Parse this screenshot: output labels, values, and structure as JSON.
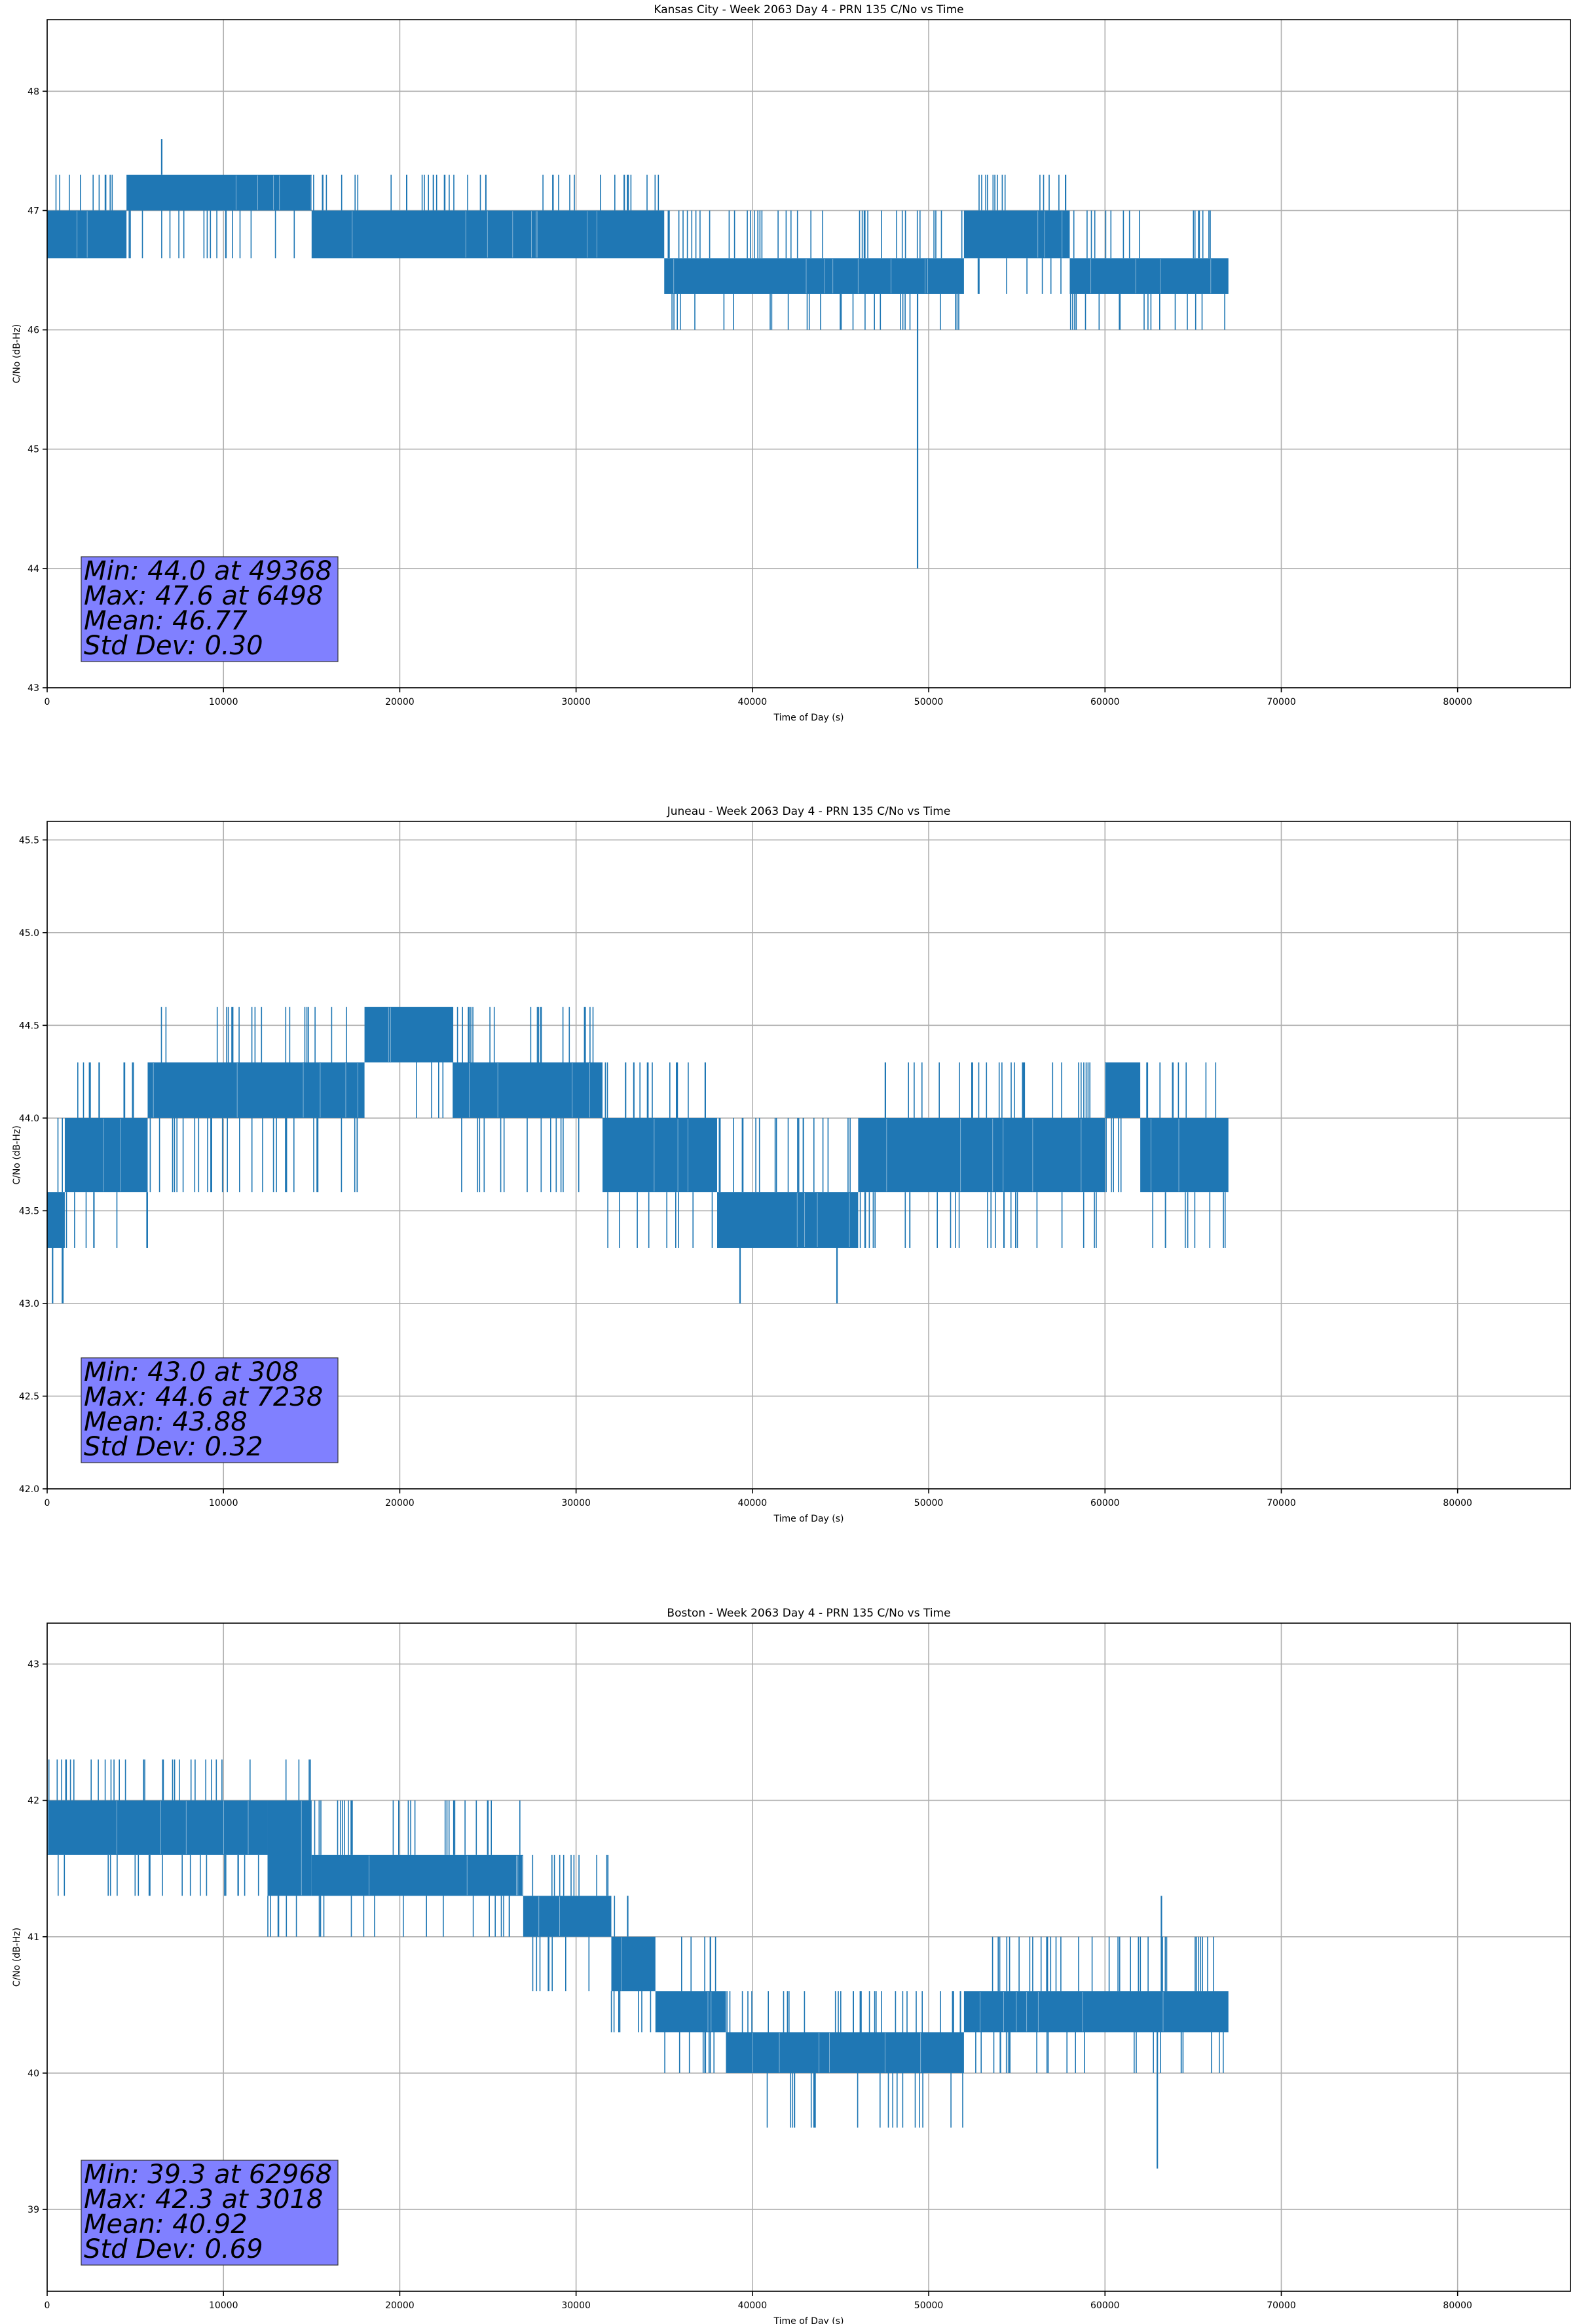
{
  "colors": {
    "line": "#1f77b4",
    "stats_box": "#8080ff",
    "grid": "#b0b0b0",
    "axes": "#000000"
  },
  "chart_data": [
    {
      "type": "line",
      "title": "Kansas City - Week 2063 Day 4 - PRN 135 C/No vs Time",
      "xlabel": "Time of Day (s)",
      "ylabel": "C/No (dB-Hz)",
      "xlim": [
        0,
        86400
      ],
      "ylim": [
        43,
        48.6
      ],
      "xticks": [
        0,
        10000,
        20000,
        30000,
        40000,
        50000,
        60000,
        70000,
        80000
      ],
      "xtick_labels": [
        "0",
        "10000",
        "20000",
        "30000",
        "40000",
        "50000",
        "60000",
        "70000",
        "80000"
      ],
      "yticks": [
        43,
        44,
        45,
        46,
        47,
        48
      ],
      "ytick_labels": [
        "43",
        "44",
        "45",
        "46",
        "47",
        "48"
      ],
      "grid": true,
      "stats": [
        "Min: 44.0 at 49368",
        "Max: 47.6 at 6498",
        "Mean: 46.77",
        "Std Dev: 0.30"
      ],
      "spikes": [
        [
          6498,
          47.6
        ],
        [
          49368,
          44.0
        ]
      ],
      "series": [
        {
          "name": "C/No",
          "bands": [
            {
              "x0": 0,
              "x1": 4500,
              "lo": 46.6,
              "hi": 47.0,
              "up": 47.3,
              "down": 46.6
            },
            {
              "x0": 4500,
              "x1": 15000,
              "lo": 47.0,
              "hi": 47.3,
              "up": 47.3,
              "down": 46.6
            },
            {
              "x0": 15000,
              "x1": 35000,
              "lo": 46.6,
              "hi": 47.0,
              "up": 47.3,
              "down": 46.6
            },
            {
              "x0": 35000,
              "x1": 52000,
              "lo": 46.3,
              "hi": 46.6,
              "up": 47.0,
              "down": 46.0
            },
            {
              "x0": 52000,
              "x1": 58000,
              "lo": 46.6,
              "hi": 47.0,
              "up": 47.3,
              "down": 46.3
            },
            {
              "x0": 58000,
              "x1": 67000,
              "lo": 46.3,
              "hi": 46.6,
              "up": 47.0,
              "down": 46.0
            }
          ]
        }
      ]
    },
    {
      "type": "line",
      "title": "Juneau - Week 2063 Day 4 - PRN 135 C/No vs Time",
      "xlabel": "Time of Day (s)",
      "ylabel": "C/No (dB-Hz)",
      "xlim": [
        0,
        86400
      ],
      "ylim": [
        42.0,
        45.6
      ],
      "xticks": [
        0,
        10000,
        20000,
        30000,
        40000,
        50000,
        60000,
        70000,
        80000
      ],
      "xtick_labels": [
        "0",
        "10000",
        "20000",
        "30000",
        "40000",
        "50000",
        "60000",
        "70000",
        "80000"
      ],
      "yticks": [
        42.0,
        42.5,
        43.0,
        43.5,
        44.0,
        44.5,
        45.0,
        45.5
      ],
      "ytick_labels": [
        "42.0",
        "42.5",
        "43.0",
        "43.5",
        "44.0",
        "44.5",
        "45.0",
        "45.5"
      ],
      "grid": true,
      "stats": [
        "Min: 43.0 at 308",
        "Max: 44.6 at 7238",
        "Mean: 43.88",
        "Std Dev: 0.32"
      ],
      "spikes": [
        [
          308,
          43.0
        ],
        [
          39300,
          43.0
        ],
        [
          44800,
          43.0
        ]
      ],
      "series": [
        {
          "name": "C/No",
          "bands": [
            {
              "x0": 0,
              "x1": 1000,
              "lo": 43.3,
              "hi": 43.6,
              "up": 44.0,
              "down": 43.0
            },
            {
              "x0": 1000,
              "x1": 5700,
              "lo": 43.6,
              "hi": 44.0,
              "up": 44.3,
              "down": 43.3
            },
            {
              "x0": 5700,
              "x1": 18000,
              "lo": 44.0,
              "hi": 44.3,
              "up": 44.6,
              "down": 43.6
            },
            {
              "x0": 18000,
              "x1": 23000,
              "lo": 44.3,
              "hi": 44.6,
              "up": 44.6,
              "down": 44.0
            },
            {
              "x0": 23000,
              "x1": 31500,
              "lo": 44.0,
              "hi": 44.3,
              "up": 44.6,
              "down": 43.6
            },
            {
              "x0": 31500,
              "x1": 38000,
              "lo": 43.6,
              "hi": 44.0,
              "up": 44.3,
              "down": 43.3
            },
            {
              "x0": 38000,
              "x1": 46000,
              "lo": 43.3,
              "hi": 43.6,
              "up": 44.0,
              "down": 43.3
            },
            {
              "x0": 46000,
              "x1": 60000,
              "lo": 43.6,
              "hi": 44.0,
              "up": 44.3,
              "down": 43.3
            },
            {
              "x0": 60000,
              "x1": 62000,
              "lo": 44.0,
              "hi": 44.3,
              "up": 44.3,
              "down": 43.6
            },
            {
              "x0": 62000,
              "x1": 67000,
              "lo": 43.6,
              "hi": 44.0,
              "up": 44.3,
              "down": 43.3
            }
          ]
        }
      ]
    },
    {
      "type": "line",
      "title": "Boston - Week 2063 Day 4 - PRN 135 C/No vs Time",
      "xlabel": "Time of Day (s)",
      "ylabel": "C/No (dB-Hz)",
      "xlim": [
        0,
        86400
      ],
      "ylim": [
        38.4,
        43.3
      ],
      "xticks": [
        0,
        10000,
        20000,
        30000,
        40000,
        50000,
        60000,
        70000,
        80000
      ],
      "xtick_labels": [
        "0",
        "10000",
        "20000",
        "30000",
        "40000",
        "50000",
        "60000",
        "70000",
        "80000"
      ],
      "yticks": [
        39,
        40,
        41,
        42,
        43
      ],
      "ytick_labels": [
        "39",
        "40",
        "41",
        "42",
        "43"
      ],
      "grid": true,
      "stats": [
        "Min: 39.3 at 62968",
        "Max: 42.3 at 3018",
        "Mean: 40.92",
        "Std Dev: 0.69"
      ],
      "spikes": [
        [
          62968,
          39.3
        ],
        [
          63200,
          41.3
        ]
      ],
      "series": [
        {
          "name": "C/No",
          "bands": [
            {
              "x0": 0,
              "x1": 12500,
              "lo": 41.6,
              "hi": 42.0,
              "up": 42.3,
              "down": 41.3
            },
            {
              "x0": 12500,
              "x1": 15000,
              "lo": 41.3,
              "hi": 42.0,
              "up": 42.3,
              "down": 41.0
            },
            {
              "x0": 15000,
              "x1": 27000,
              "lo": 41.3,
              "hi": 41.6,
              "up": 42.0,
              "down": 41.0
            },
            {
              "x0": 27000,
              "x1": 32000,
              "lo": 41.0,
              "hi": 41.3,
              "up": 41.6,
              "down": 40.6
            },
            {
              "x0": 32000,
              "x1": 34500,
              "lo": 40.6,
              "hi": 41.0,
              "up": 41.3,
              "down": 40.3
            },
            {
              "x0": 34500,
              "x1": 38500,
              "lo": 40.3,
              "hi": 40.6,
              "up": 41.0,
              "down": 40.0
            },
            {
              "x0": 38500,
              "x1": 52000,
              "lo": 40.0,
              "hi": 40.3,
              "up": 40.6,
              "down": 39.6
            },
            {
              "x0": 52000,
              "x1": 67000,
              "lo": 40.3,
              "hi": 40.6,
              "up": 41.0,
              "down": 40.0
            }
          ]
        }
      ]
    }
  ]
}
